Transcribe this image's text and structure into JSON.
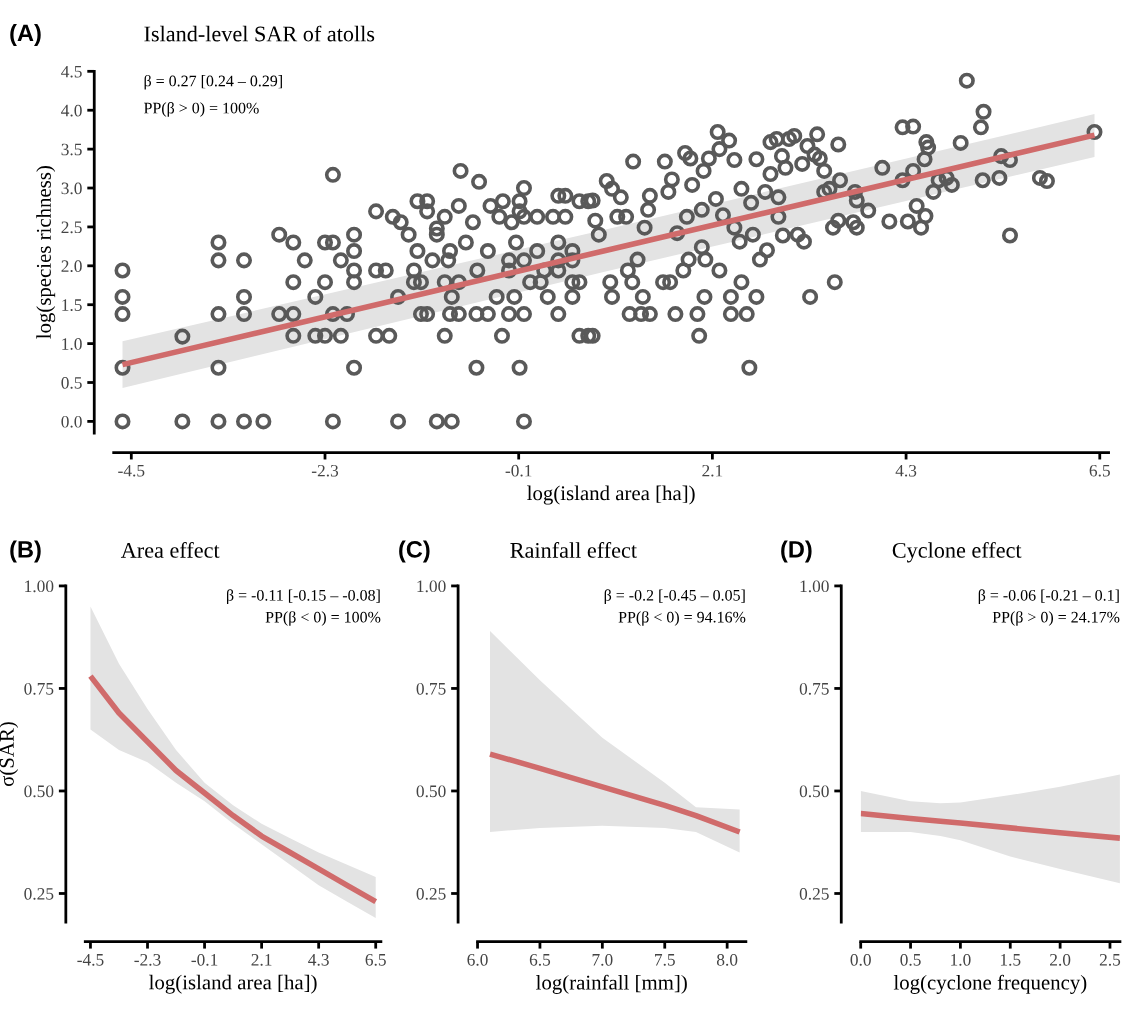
{
  "chart_data": [
    {
      "type": "scatter",
      "title": "Island-level SAR of atolls",
      "xlabel": "log(island area [ha])",
      "ylabel": "log(species richness)",
      "annotations": [
        "(A)",
        "β = 0.27 [0.24 – 0.29]",
        "PP(β > 0) = 100%"
      ],
      "grid": false,
      "xlim": [
        -4.7,
        6.6
      ],
      "ylim": [
        -0.15,
        4.5
      ],
      "xticks": [
        -4.5,
        -2.3,
        -0.1,
        2.1,
        4.3,
        6.5
      ],
      "yticks": [
        {
          "value": 0,
          "label": "0.0"
        },
        0.5,
        {
          "value": 1,
          "label": "1.0"
        },
        1.5,
        {
          "value": 2,
          "label": "2.0"
        },
        2.5,
        {
          "value": 3,
          "label": "3.0"
        },
        3.5,
        {
          "value": 4,
          "label": "4.0"
        },
        4.5
      ],
      "series": [
        {
          "type": "scatter",
          "color": "#595959",
          "marker": "circle",
          "x": [
            -4.6,
            -4.6,
            -4.6,
            -4.6,
            -4.6,
            -3.92,
            -3.92,
            -3.51,
            -3.51,
            -3.51,
            -3.51,
            -3.51,
            -3.22,
            -3.22,
            -3.22,
            -3.22,
            -3.0,
            -2.82,
            -2.82,
            -2.66,
            -2.66,
            -2.66,
            -2.66,
            -2.53,
            -2.41,
            -2.41,
            -2.3,
            -2.3,
            -2.3,
            -2.21,
            -2.21,
            -2.21,
            -2.21,
            -2.12,
            -2.12,
            -2.05,
            -1.97,
            -1.97,
            -1.97,
            -1.97,
            -1.97,
            -1.72,
            -1.72,
            -1.72,
            -1.61,
            -1.57,
            -1.53,
            -1.47,
            -1.47,
            -1.44,
            -1.35,
            -1.29,
            -1.29,
            -1.25,
            -1.25,
            -1.21,
            -1.21,
            -1.14,
            -1.14,
            -1.14,
            -1.08,
            -1.03,
            -1.03,
            -1.03,
            -0.94,
            -0.94,
            -0.94,
            -0.9,
            -0.88,
            -0.88,
            -0.86,
            -0.86,
            -0.78,
            -0.78,
            -0.78,
            -0.76,
            -0.7,
            -0.62,
            -0.58,
            -0.58,
            -0.57,
            -0.55,
            -0.45,
            -0.45,
            -0.42,
            -0.35,
            -0.32,
            -0.29,
            -0.28,
            -0.21,
            -0.21,
            -0.21,
            -0.18,
            -0.15,
            -0.13,
            -0.09,
            -0.09,
            -0.09,
            -0.04,
            -0.04,
            -0.04,
            -0.04,
            -0.04,
            0.03,
            0.11,
            0.11,
            0.15,
            0.19,
            0.23,
            0.29,
            0.35,
            0.35,
            0.35,
            0.35,
            0.35,
            0.43,
            0.43,
            0.51,
            0.51,
            0.51,
            0.51,
            0.59,
            0.59,
            0.59,
            0.69,
            0.69,
            0.74,
            0.74,
            0.81,
            0.77,
            0.9,
            0.96,
            0.96,
            0.94,
            1.02,
            1.06,
            1.12,
            1.14,
            1.16,
            1.2,
            1.19,
            1.25,
            1.29,
            1.31,
            1.33,
            1.37,
            1.39,
            1.39,
            1.54,
            1.56,
            1.6,
            1.62,
            1.64,
            1.68,
            1.7,
            1.77,
            1.79,
            1.81,
            1.83,
            1.87,
            1.85,
            1.93,
            1.95,
            1.98,
            2.0,
            1.98,
            2.02,
            2.01,
            2.06,
            2.14,
            2.16,
            2.18,
            2.18,
            2.22,
            2.29,
            2.31,
            2.31,
            2.35,
            2.35,
            2.41,
            2.43,
            2.43,
            2.49,
            2.52,
            2.54,
            2.56,
            2.6,
            2.6,
            2.64,
            2.7,
            2.72,
            2.76,
            2.76,
            2.83,
            2.85,
            2.85,
            2.89,
            2.9,
            2.93,
            2.97,
            3.03,
            3.07,
            3.12,
            3.14,
            3.18,
            3.21,
            3.26,
            3.29,
            3.32,
            3.37,
            3.37,
            3.43,
            3.47,
            3.49,
            3.53,
            3.53,
            3.55,
            3.7,
            3.72,
            3.74,
            3.74,
            3.87,
            4.03,
            4.11,
            4.26,
            4.26,
            4.32,
            4.38,
            4.38,
            4.42,
            4.47,
            4.51,
            4.52,
            4.53,
            4.55,
            4.61,
            4.67,
            4.76,
            4.82,
            4.92,
            4.99,
            5.15,
            5.17,
            5.18,
            5.36,
            5.38,
            5.48,
            5.48,
            5.82,
            5.9,
            6.44
          ],
          "values": [
            1.94,
            1.6,
            1.38,
            0.69,
            0,
            1.09,
            0,
            2.3,
            2.07,
            1.38,
            0.69,
            0,
            2.07,
            1.6,
            1.38,
            0,
            0,
            2.4,
            1.38,
            2.3,
            1.79,
            1.38,
            1.1,
            2.07,
            1.6,
            1.1,
            2.3,
            1.79,
            1.1,
            3.17,
            2.3,
            1.38,
            0,
            2.07,
            1.1,
            1.38,
            2.4,
            2.19,
            1.94,
            1.79,
            0.69,
            2.7,
            1.94,
            1.1,
            1.94,
            1.1,
            2.63,
            1.6,
            0,
            2.56,
            2.4,
            1.94,
            1.79,
            2.19,
            2.83,
            1.79,
            1.38,
            2.83,
            2.7,
            1.38,
            2.07,
            2.48,
            2.4,
            0,
            2.63,
            1.79,
            1.1,
            2.07,
            2.19,
            1.38,
            1.6,
            0,
            2.77,
            1.79,
            1.38,
            3.22,
            2.3,
            2.56,
            0.69,
            1.38,
            1.94,
            3.08,
            2.19,
            1.38,
            2.77,
            1.6,
            2.63,
            1.1,
            2.83,
            2.07,
            1.94,
            1.38,
            2.56,
            1.6,
            2.3,
            0.69,
            2.83,
            2.7,
            3.0,
            2.63,
            2.07,
            1.38,
            0,
            1.79,
            2.63,
            2.19,
            1.79,
            1.94,
            1.6,
            2.63,
            2.9,
            2.3,
            2.07,
            1.94,
            1.38,
            2.9,
            2.63,
            2.19,
            2.07,
            1.79,
            1.6,
            2.83,
            1.79,
            1.1,
            2.83,
            1.1,
            2.84,
            1.1,
            2.4,
            2.58,
            3.09,
            2.99,
            1.6,
            1.79,
            2.63,
            2.88,
            2.63,
            1.94,
            1.38,
            3.34,
            1.79,
            2.08,
            1.38,
            1.6,
            2.49,
            2.72,
            2.9,
            1.38,
            1.79,
            3.34,
            2.95,
            1.79,
            3.11,
            1.38,
            2.42,
            1.94,
            3.45,
            2.63,
            2.08,
            3.04,
            3.38,
            1.38,
            1.1,
            2.72,
            3.22,
            2.24,
            2.08,
            1.6,
            3.38,
            2.86,
            3.72,
            1.94,
            3.5,
            2.65,
            3.61,
            1.6,
            1.38,
            2.49,
            3.36,
            2.31,
            2.99,
            1.79,
            1.38,
            0.69,
            2.81,
            2.4,
            3.37,
            1.6,
            2.08,
            2.95,
            2.2,
            3.18,
            3.59,
            3.63,
            2.88,
            2.63,
            3.41,
            2.39,
            3.26,
            3.63,
            3.67,
            2.4,
            3.31,
            2.31,
            3.54,
            1.6,
            3.43,
            3.69,
            3.38,
            3.22,
            2.95,
            2.99,
            2.49,
            1.79,
            2.58,
            3.56,
            3.1,
            2.56,
            2.95,
            2.49,
            2.84,
            2.71,
            3.26,
            2.57,
            3.78,
            3.1,
            2.57,
            3.79,
            3.22,
            2.77,
            2.49,
            3.37,
            2.64,
            3.59,
            3.52,
            2.95,
            3.1,
            3.13,
            3.04,
            3.58,
            4.38,
            3.78,
            3.1,
            3.98,
            3.13,
            3.41,
            3.36,
            2.39,
            3.13,
            3.09,
            3.72
          ]
        },
        {
          "type": "line",
          "color": "#d06b6b",
          "marker": "none",
          "x": [
            -4.6,
            0.9,
            6.44
          ],
          "values": [
            0.73,
            2.2,
            3.68
          ],
          "lower": [
            0.43,
            1.93,
            3.4
          ],
          "upper": [
            1.03,
            2.47,
            3.95
          ]
        }
      ]
    },
    {
      "type": "line",
      "title": "Area effect",
      "xlabel": "log(island area [ha])",
      "ylabel": "σ(SAR)",
      "annotations": [
        "(B)",
        "β = -0.11 [-0.15 – -0.08]",
        "PP(β < 0) = 100%"
      ],
      "grid": false,
      "xlim": [
        -4.7,
        6.7
      ],
      "ylim": [
        0.18,
        1.0
      ],
      "xticks": [
        -4.5,
        -2.3,
        -0.1,
        2.1,
        4.3,
        6.5
      ],
      "yticks": [
        {
          "value": 0.25,
          "label": "0.25"
        },
        {
          "value": 0.5,
          "label": "0.50"
        },
        {
          "value": 0.75,
          "label": "0.75"
        },
        {
          "value": 1.0,
          "label": "1.00"
        }
      ],
      "series": [
        {
          "color": "#d06b6b",
          "x": [
            -4.5,
            -3.4,
            -2.3,
            -1.2,
            -0.1,
            1.0,
            2.1,
            3.2,
            4.3,
            5.4,
            6.5
          ],
          "values": [
            0.78,
            0.69,
            0.62,
            0.55,
            0.495,
            0.44,
            0.39,
            0.35,
            0.31,
            0.27,
            0.23
          ],
          "lower": [
            0.65,
            0.6,
            0.57,
            0.52,
            0.475,
            0.42,
            0.37,
            0.32,
            0.27,
            0.23,
            0.19
          ],
          "upper": [
            0.95,
            0.81,
            0.7,
            0.6,
            0.52,
            0.465,
            0.42,
            0.385,
            0.35,
            0.32,
            0.29
          ]
        }
      ]
    },
    {
      "type": "line",
      "title": "Rainfall effect",
      "xlabel": "log(rainfall [mm])",
      "annotations": [
        "(C)",
        "β = -0.2 [-0.45 – 0.05]",
        "PP(β < 0) = 94.16%"
      ],
      "grid": false,
      "xlim": [
        6.0,
        8.15
      ],
      "ylim": [
        0.18,
        1.0
      ],
      "xticks": [
        {
          "value": 6,
          "label": "6.0"
        },
        6.5,
        {
          "value": 7,
          "label": "7.0"
        },
        7.5,
        {
          "value": 8,
          "label": "8.0"
        }
      ],
      "yticks": [
        {
          "value": 0.25,
          "label": "0.25"
        },
        {
          "value": 0.5,
          "label": "0.50"
        },
        {
          "value": 0.75,
          "label": "0.75"
        },
        {
          "value": 1.0,
          "label": "1.00"
        }
      ],
      "series": [
        {
          "color": "#d06b6b",
          "x": [
            6.1,
            6.5,
            7.0,
            7.5,
            7.75,
            8.1
          ],
          "values": [
            0.59,
            0.555,
            0.51,
            0.465,
            0.44,
            0.4
          ],
          "lower": [
            0.4,
            0.41,
            0.415,
            0.41,
            0.4,
            0.35
          ],
          "upper": [
            0.89,
            0.77,
            0.63,
            0.52,
            0.46,
            0.455
          ]
        }
      ]
    },
    {
      "type": "line",
      "title": "Cyclone effect",
      "xlabel": "log(cyclone frequency)",
      "annotations": [
        "(D)",
        "β = -0.06 [-0.21 – 0.1]",
        "PP(β > 0) = 24.17%"
      ],
      "grid": false,
      "xlim": [
        0.0,
        2.6
      ],
      "ylim": [
        0.18,
        1.0
      ],
      "xticks": [
        {
          "value": 0,
          "label": "0.0"
        },
        0.5,
        {
          "value": 1,
          "label": "1.0"
        },
        1.5,
        {
          "value": 2,
          "label": "2.0"
        },
        2.5
      ],
      "yticks": [
        {
          "value": 0.25,
          "label": "0.25"
        },
        {
          "value": 0.5,
          "label": "0.50"
        },
        {
          "value": 0.75,
          "label": "0.75"
        },
        {
          "value": 1.0,
          "label": "1.00"
        }
      ],
      "series": [
        {
          "color": "#d06b6b",
          "x": [
            0.0,
            0.5,
            0.8,
            1.0,
            1.5,
            2.0,
            2.6
          ],
          "values": [
            0.445,
            0.433,
            0.426,
            0.422,
            0.41,
            0.398,
            0.385
          ],
          "lower": [
            0.4,
            0.4,
            0.39,
            0.38,
            0.34,
            0.31,
            0.275
          ],
          "upper": [
            0.5,
            0.475,
            0.47,
            0.472,
            0.49,
            0.51,
            0.54
          ]
        }
      ]
    }
  ]
}
